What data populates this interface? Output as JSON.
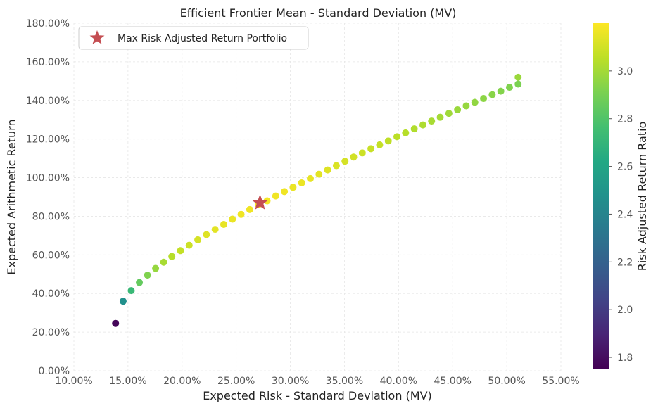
{
  "chart_data": {
    "type": "scatter",
    "title": "Efficient Frontier Mean - Standard Deviation (MV)",
    "xlabel": "Expected Risk - Standard Deviation (MV)",
    "ylabel": "Expected Arithmetic Return",
    "xlim": [
      0.1,
      0.55
    ],
    "ylim": [
      0.0,
      1.8
    ],
    "x_ticks": [
      "10.00%",
      "15.00%",
      "20.00%",
      "25.00%",
      "30.00%",
      "35.00%",
      "40.00%",
      "45.00%",
      "50.00%",
      "55.00%"
    ],
    "y_ticks": [
      "0.00%",
      "20.00%",
      "40.00%",
      "60.00%",
      "80.00%",
      "100.00%",
      "120.00%",
      "140.00%",
      "160.00%",
      "180.00%"
    ],
    "grid": true,
    "colorbar": {
      "label": "Risk Adjusted Return Ratio",
      "range": [
        1.75,
        3.2
      ],
      "ticks": [
        "1.8",
        "2.0",
        "2.2",
        "2.4",
        "2.6",
        "2.8",
        "3.0"
      ],
      "colormap": "viridis"
    },
    "legend": {
      "position": "top-left",
      "entries": [
        "Max Risk Adjusted Return Portfolio"
      ]
    },
    "highlight": {
      "label": "Max Risk Adjusted Return Portfolio",
      "x": 0.272,
      "y": 0.87,
      "marker": "star",
      "color": "#c44e52"
    },
    "points": [
      {
        "x": 0.1385,
        "y": 0.245,
        "c": 1.77
      },
      {
        "x": 0.1455,
        "y": 0.36,
        "c": 2.47
      },
      {
        "x": 0.153,
        "y": 0.415,
        "c": 2.72
      },
      {
        "x": 0.1605,
        "y": 0.457,
        "c": 2.85
      },
      {
        "x": 0.168,
        "y": 0.495,
        "c": 2.92
      },
      {
        "x": 0.1755,
        "y": 0.53,
        "c": 2.97
      },
      {
        "x": 0.183,
        "y": 0.562,
        "c": 3.01
      },
      {
        "x": 0.1905,
        "y": 0.592,
        "c": 3.04
      },
      {
        "x": 0.1985,
        "y": 0.622,
        "c": 3.07
      },
      {
        "x": 0.2065,
        "y": 0.65,
        "c": 3.09
      },
      {
        "x": 0.2145,
        "y": 0.678,
        "c": 3.11
      },
      {
        "x": 0.2225,
        "y": 0.705,
        "c": 3.13
      },
      {
        "x": 0.2305,
        "y": 0.732,
        "c": 3.14
      },
      {
        "x": 0.2385,
        "y": 0.758,
        "c": 3.15
      },
      {
        "x": 0.2465,
        "y": 0.785,
        "c": 3.16
      },
      {
        "x": 0.2545,
        "y": 0.81,
        "c": 3.17
      },
      {
        "x": 0.2625,
        "y": 0.835,
        "c": 3.17
      },
      {
        "x": 0.2705,
        "y": 0.86,
        "c": 3.18
      },
      {
        "x": 0.2785,
        "y": 0.88,
        "c": 3.18
      },
      {
        "x": 0.2865,
        "y": 0.905,
        "c": 3.17
      },
      {
        "x": 0.2945,
        "y": 0.928,
        "c": 3.17
      },
      {
        "x": 0.3025,
        "y": 0.95,
        "c": 3.16
      },
      {
        "x": 0.3105,
        "y": 0.973,
        "c": 3.16
      },
      {
        "x": 0.3185,
        "y": 0.995,
        "c": 3.15
      },
      {
        "x": 0.3265,
        "y": 1.018,
        "c": 3.14
      },
      {
        "x": 0.3345,
        "y": 1.04,
        "c": 3.13
      },
      {
        "x": 0.3425,
        "y": 1.062,
        "c": 3.12
      },
      {
        "x": 0.3505,
        "y": 1.085,
        "c": 3.11
      },
      {
        "x": 0.3585,
        "y": 1.107,
        "c": 3.1
      },
      {
        "x": 0.3665,
        "y": 1.128,
        "c": 3.09
      },
      {
        "x": 0.3745,
        "y": 1.15,
        "c": 3.08
      },
      {
        "x": 0.3825,
        "y": 1.17,
        "c": 3.07
      },
      {
        "x": 0.3905,
        "y": 1.19,
        "c": 3.06
      },
      {
        "x": 0.3985,
        "y": 1.212,
        "c": 3.05
      },
      {
        "x": 0.4065,
        "y": 1.232,
        "c": 3.04
      },
      {
        "x": 0.4145,
        "y": 1.253,
        "c": 3.03
      },
      {
        "x": 0.4225,
        "y": 1.273,
        "c": 3.02
      },
      {
        "x": 0.4305,
        "y": 1.293,
        "c": 3.01
      },
      {
        "x": 0.4385,
        "y": 1.313,
        "c": 3.0
      },
      {
        "x": 0.4465,
        "y": 1.333,
        "c": 2.99
      },
      {
        "x": 0.4545,
        "y": 1.352,
        "c": 2.98
      },
      {
        "x": 0.4625,
        "y": 1.372,
        "c": 2.97
      },
      {
        "x": 0.4705,
        "y": 1.39,
        "c": 2.96
      },
      {
        "x": 0.4785,
        "y": 1.41,
        "c": 2.95
      },
      {
        "x": 0.4865,
        "y": 1.43,
        "c": 2.94
      },
      {
        "x": 0.4945,
        "y": 1.448,
        "c": 2.93
      },
      {
        "x": 0.5025,
        "y": 1.468,
        "c": 2.92
      },
      {
        "x": 0.5105,
        "y": 1.485,
        "c": 2.91
      },
      {
        "x": 0.5105,
        "y": 1.52,
        "c": 2.98
      }
    ]
  }
}
